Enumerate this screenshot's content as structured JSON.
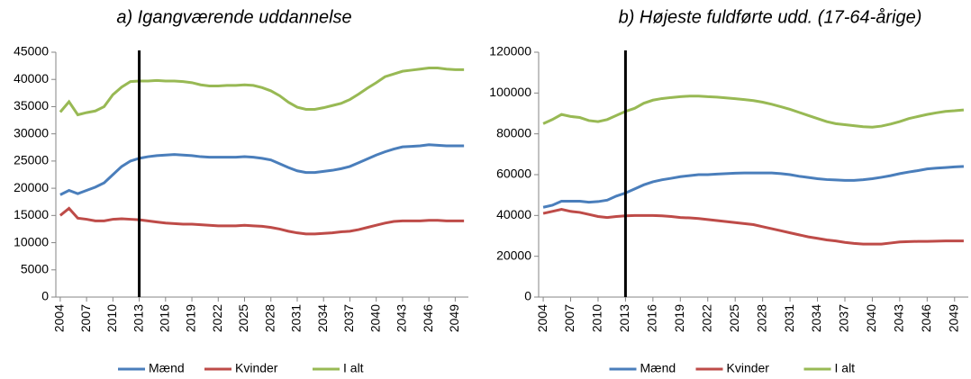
{
  "chart_data": [
    {
      "type": "line",
      "title": "a) Igangværende uddannelse",
      "x": [
        2004,
        2005,
        2006,
        2007,
        2008,
        2009,
        2010,
        2011,
        2012,
        2013,
        2014,
        2015,
        2016,
        2017,
        2018,
        2019,
        2020,
        2021,
        2022,
        2023,
        2024,
        2025,
        2026,
        2027,
        2028,
        2029,
        2030,
        2031,
        2032,
        2033,
        2034,
        2035,
        2036,
        2037,
        2038,
        2039,
        2040,
        2041,
        2042,
        2043,
        2044,
        2045,
        2046,
        2047,
        2048,
        2049,
        2050
      ],
      "xlim": [
        2003.5,
        2050.5
      ],
      "xticks": [
        2004,
        2007,
        2010,
        2013,
        2016,
        2019,
        2022,
        2025,
        2028,
        2031,
        2034,
        2037,
        2040,
        2043,
        2046,
        2049
      ],
      "ylim": [
        0,
        45000
      ],
      "yticks": [
        0,
        5000,
        10000,
        15000,
        20000,
        25000,
        30000,
        35000,
        40000,
        45000
      ],
      "vline": 2013,
      "grid": false,
      "legend": "bottom",
      "series": [
        {
          "name": "Mænd",
          "color": "#4a7ebb",
          "values": [
            18800,
            19600,
            19000,
            19600,
            20200,
            21000,
            22500,
            24000,
            25000,
            25500,
            25800,
            26000,
            26100,
            26200,
            26100,
            26000,
            25800,
            25700,
            25700,
            25700,
            25700,
            25800,
            25700,
            25500,
            25200,
            24500,
            23800,
            23200,
            22900,
            22900,
            23100,
            23300,
            23600,
            24000,
            24700,
            25400,
            26100,
            26700,
            27200,
            27600,
            27700,
            27800,
            28000,
            27900,
            27800,
            27800,
            27800
          ]
        },
        {
          "name": "Kvinder",
          "color": "#be4b48",
          "values": [
            15000,
            16300,
            14500,
            14300,
            14000,
            14000,
            14300,
            14400,
            14300,
            14200,
            14000,
            13800,
            13600,
            13500,
            13400,
            13400,
            13300,
            13200,
            13100,
            13100,
            13100,
            13200,
            13100,
            13000,
            12800,
            12500,
            12100,
            11800,
            11600,
            11600,
            11700,
            11800,
            12000,
            12100,
            12400,
            12800,
            13200,
            13600,
            13900,
            14000,
            14000,
            14000,
            14100,
            14100,
            14000,
            14000,
            14000
          ]
        },
        {
          "name": "I alt",
          "color": "#98b954",
          "values": [
            34000,
            35900,
            33500,
            33900,
            34200,
            35000,
            37200,
            38600,
            39600,
            39700,
            39700,
            39800,
            39700,
            39700,
            39600,
            39400,
            39000,
            38800,
            38800,
            38900,
            38900,
            39000,
            38900,
            38500,
            37900,
            37000,
            35800,
            34900,
            34500,
            34500,
            34800,
            35200,
            35600,
            36300,
            37300,
            38400,
            39400,
            40500,
            41000,
            41500,
            41700,
            41900,
            42100,
            42100,
            41900,
            41800,
            41800
          ]
        }
      ]
    },
    {
      "type": "line",
      "title": "b) Højeste fuldførte udd. (17-64-årige)",
      "x": [
        2004,
        2005,
        2006,
        2007,
        2008,
        2009,
        2010,
        2011,
        2012,
        2013,
        2014,
        2015,
        2016,
        2017,
        2018,
        2019,
        2020,
        2021,
        2022,
        2023,
        2024,
        2025,
        2026,
        2027,
        2028,
        2029,
        2030,
        2031,
        2032,
        2033,
        2034,
        2035,
        2036,
        2037,
        2038,
        2039,
        2040,
        2041,
        2042,
        2043,
        2044,
        2045,
        2046,
        2047,
        2048,
        2049,
        2050
      ],
      "xlim": [
        2003.5,
        2050.5
      ],
      "xticks": [
        2004,
        2007,
        2010,
        2013,
        2016,
        2019,
        2022,
        2025,
        2028,
        2031,
        2034,
        2037,
        2040,
        2043,
        2046,
        2049
      ],
      "ylim": [
        0,
        120000
      ],
      "yticks": [
        0,
        20000,
        40000,
        60000,
        80000,
        100000,
        120000
      ],
      "vline": 2013,
      "grid": false,
      "legend": "bottom",
      "series": [
        {
          "name": "Mænd",
          "color": "#4a7ebb",
          "values": [
            44000,
            45000,
            47000,
            47000,
            47000,
            46500,
            46800,
            47500,
            49500,
            51000,
            53000,
            55000,
            56500,
            57500,
            58200,
            59000,
            59500,
            60000,
            60000,
            60300,
            60500,
            60700,
            60800,
            60800,
            60800,
            60800,
            60500,
            60000,
            59200,
            58600,
            58000,
            57600,
            57400,
            57200,
            57200,
            57500,
            58000,
            58700,
            59500,
            60500,
            61300,
            62000,
            62800,
            63200,
            63500,
            63800,
            64000
          ]
        },
        {
          "name": "Kvinder",
          "color": "#be4b48",
          "values": [
            41000,
            42000,
            43000,
            42000,
            41500,
            40500,
            39500,
            39000,
            39500,
            39800,
            40000,
            40000,
            40000,
            39800,
            39500,
            39000,
            38800,
            38500,
            38000,
            37500,
            37000,
            36500,
            36000,
            35500,
            34500,
            33500,
            32500,
            31500,
            30500,
            29500,
            28800,
            28000,
            27500,
            26800,
            26300,
            26000,
            26000,
            26000,
            26500,
            27000,
            27200,
            27300,
            27300,
            27400,
            27500,
            27500,
            27500
          ]
        },
        {
          "name": "I alt",
          "color": "#98b954",
          "values": [
            85000,
            87000,
            89500,
            88500,
            88000,
            86500,
            86000,
            87000,
            89000,
            91000,
            92500,
            95000,
            96500,
            97300,
            97800,
            98200,
            98500,
            98500,
            98200,
            98000,
            97600,
            97200,
            96800,
            96300,
            95500,
            94500,
            93300,
            92000,
            90500,
            89000,
            87500,
            86000,
            85000,
            84500,
            84000,
            83500,
            83300,
            83800,
            84800,
            86000,
            87500,
            88500,
            89500,
            90300,
            91000,
            91300,
            91700
          ]
        }
      ]
    }
  ]
}
